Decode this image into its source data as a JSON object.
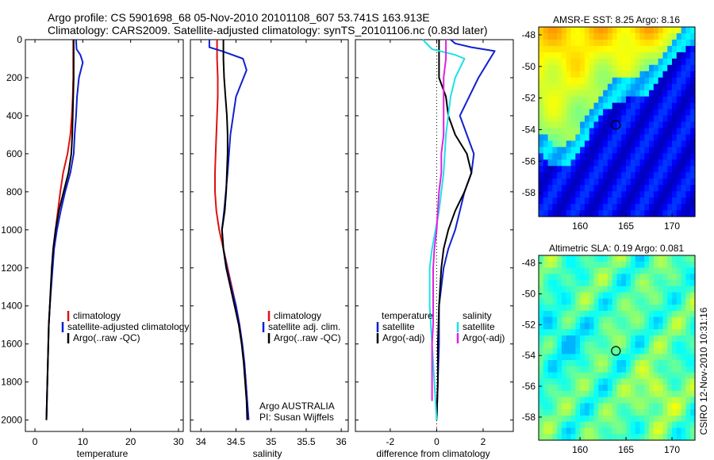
{
  "title": {
    "line1": "Argo profile: CS 5901698_68 05-Nov-2010 20101108_607 53.741S 163.913E",
    "line2": "Climatology: CARS2009. Satellite-adjusted climatology: synTS_20101106.nc (0.83d later)"
  },
  "colors": {
    "climatology": "#e01010",
    "satellite": "#1020d0",
    "argo": "#000000",
    "sal_satellite": "#20e0e8",
    "sal_argo": "#e020e0"
  },
  "chart_data": [
    {
      "type": "line",
      "id": "temperature",
      "xlabel": "temperature",
      "xlim": [
        -2,
        31
      ],
      "xticks": [
        0,
        10,
        20,
        30
      ],
      "ylim": [
        2060,
        0
      ],
      "yticks": [
        0,
        200,
        400,
        600,
        800,
        1000,
        1200,
        1400,
        1600,
        1800,
        2000
      ],
      "legend_position": "bottom-right",
      "series": [
        {
          "name": "climatology",
          "color_key": "climatology",
          "points": [
            [
              8.0,
              0
            ],
            [
              8.0,
              100
            ],
            [
              8.0,
              200
            ],
            [
              7.9,
              300
            ],
            [
              7.7,
              400
            ],
            [
              7.4,
              500
            ],
            [
              6.8,
              600
            ],
            [
              5.9,
              700
            ],
            [
              5.3,
              800
            ],
            [
              4.8,
              900
            ],
            [
              4.3,
              1000
            ],
            [
              3.9,
              1100
            ],
            [
              3.6,
              1200
            ],
            [
              3.3,
              1300
            ],
            [
              3.1,
              1400
            ],
            [
              2.9,
              1500
            ],
            [
              2.8,
              1600
            ],
            [
              2.7,
              1700
            ],
            [
              2.6,
              1800
            ],
            [
              2.5,
              1900
            ],
            [
              2.4,
              2000
            ]
          ]
        },
        {
          "name": "satellite-adjusted climatology",
          "color_key": "satellite",
          "points": [
            [
              8.6,
              0
            ],
            [
              8.7,
              50
            ],
            [
              9.5,
              80
            ],
            [
              10.0,
              120
            ],
            [
              9.2,
              200
            ],
            [
              8.8,
              300
            ],
            [
              8.6,
              400
            ],
            [
              8.3,
              500
            ],
            [
              8.1,
              600
            ],
            [
              7.4,
              700
            ],
            [
              6.3,
              800
            ],
            [
              5.4,
              900
            ],
            [
              4.6,
              1000
            ],
            [
              4.0,
              1100
            ],
            [
              3.7,
              1200
            ],
            [
              3.4,
              1300
            ],
            [
              3.1,
              1400
            ],
            [
              2.9,
              1500
            ],
            [
              2.8,
              1600
            ],
            [
              2.7,
              1700
            ],
            [
              2.6,
              1800
            ],
            [
              2.5,
              1900
            ],
            [
              2.4,
              2000
            ]
          ]
        },
        {
          "name": "Argo(..raw -QC)",
          "color_key": "argo",
          "points": [
            [
              8.1,
              0
            ],
            [
              8.1,
              100
            ],
            [
              8.1,
              200
            ],
            [
              8.0,
              300
            ],
            [
              7.9,
              400
            ],
            [
              7.8,
              500
            ],
            [
              7.6,
              600
            ],
            [
              7.0,
              700
            ],
            [
              6.0,
              800
            ],
            [
              5.0,
              900
            ],
            [
              4.3,
              1000
            ],
            [
              3.8,
              1100
            ],
            [
              3.5,
              1200
            ],
            [
              3.3,
              1300
            ],
            [
              3.1,
              1400
            ],
            [
              2.9,
              1500
            ],
            [
              2.8,
              1600
            ],
            [
              2.7,
              1700
            ],
            [
              2.6,
              1800
            ],
            [
              2.5,
              1900
            ],
            [
              2.4,
              2000
            ]
          ]
        }
      ]
    },
    {
      "type": "line",
      "id": "salinity",
      "xlabel": "salinity",
      "xlim": [
        33.85,
        36.1
      ],
      "xticks": [
        34,
        34.5,
        35,
        35.5,
        36
      ],
      "ylim": [
        2060,
        0
      ],
      "yticks": [
        0,
        200,
        400,
        600,
        800,
        1000,
        1200,
        1400,
        1600,
        1800,
        2000
      ],
      "legend_position": "bottom-right",
      "series": [
        {
          "name": "climatology",
          "color_key": "climatology",
          "points": [
            [
              34.23,
              0
            ],
            [
              34.23,
              100
            ],
            [
              34.24,
              200
            ],
            [
              34.24,
              300
            ],
            [
              34.23,
              400
            ],
            [
              34.22,
              500
            ],
            [
              34.21,
              600
            ],
            [
              34.2,
              700
            ],
            [
              34.2,
              800
            ],
            [
              34.22,
              900
            ],
            [
              34.26,
              1000
            ],
            [
              34.32,
              1100
            ],
            [
              34.38,
              1200
            ],
            [
              34.44,
              1300
            ],
            [
              34.5,
              1400
            ],
            [
              34.55,
              1500
            ],
            [
              34.59,
              1600
            ],
            [
              34.62,
              1700
            ],
            [
              34.64,
              1800
            ],
            [
              34.66,
              1900
            ],
            [
              34.68,
              2000
            ]
          ]
        },
        {
          "name": "satellite adj. clim.",
          "color_key": "satellite",
          "points": [
            [
              34.12,
              0
            ],
            [
              34.12,
              40
            ],
            [
              34.3,
              60
            ],
            [
              34.6,
              100
            ],
            [
              34.65,
              160
            ],
            [
              34.5,
              300
            ],
            [
              34.42,
              500
            ],
            [
              34.38,
              700
            ],
            [
              34.33,
              900
            ],
            [
              34.3,
              1000
            ],
            [
              34.32,
              1100
            ],
            [
              34.37,
              1200
            ],
            [
              34.43,
              1300
            ],
            [
              34.5,
              1400
            ],
            [
              34.55,
              1500
            ],
            [
              34.59,
              1600
            ],
            [
              34.62,
              1700
            ],
            [
              34.64,
              1800
            ],
            [
              34.66,
              1900
            ],
            [
              34.68,
              2000
            ]
          ]
        },
        {
          "name": "Argo(..raw -QC)",
          "color_key": "argo",
          "points": [
            [
              34.32,
              0
            ],
            [
              34.32,
              100
            ],
            [
              34.33,
              200
            ],
            [
              34.35,
              300
            ],
            [
              34.37,
              400
            ],
            [
              34.38,
              500
            ],
            [
              34.38,
              600
            ],
            [
              34.37,
              700
            ],
            [
              34.36,
              800
            ],
            [
              34.34,
              900
            ],
            [
              34.3,
              1000
            ],
            [
              34.32,
              1100
            ],
            [
              34.36,
              1200
            ],
            [
              34.42,
              1300
            ],
            [
              34.48,
              1400
            ],
            [
              34.54,
              1500
            ],
            [
              34.58,
              1600
            ],
            [
              34.61,
              1700
            ],
            [
              34.63,
              1800
            ],
            [
              34.65,
              1900
            ],
            [
              34.66,
              2000
            ]
          ]
        }
      ]
    },
    {
      "type": "line",
      "id": "difference",
      "xlabel": "difference from climatology",
      "xlim": [
        -3.5,
        3.3
      ],
      "xticks": [
        -2,
        0,
        2
      ],
      "ylim": [
        2060,
        0
      ],
      "yticks": [
        0,
        200,
        400,
        600,
        800,
        1000,
        1200,
        1400,
        1600,
        1800,
        2000
      ],
      "legend_position": "bottom",
      "series": [
        {
          "name": "satellite",
          "group": "temperature",
          "color_key": "satellite",
          "points": [
            [
              0.6,
              0
            ],
            [
              0.8,
              20
            ],
            [
              1.5,
              40
            ],
            [
              2.5,
              60
            ],
            [
              2.2,
              120
            ],
            [
              1.8,
              200
            ],
            [
              1.0,
              400
            ],
            [
              1.3,
              500
            ],
            [
              1.6,
              600
            ],
            [
              1.5,
              700
            ],
            [
              1.2,
              800
            ],
            [
              1.0,
              900
            ],
            [
              0.8,
              1000
            ],
            [
              0.5,
              1100
            ],
            [
              0.3,
              1200
            ],
            [
              0.2,
              1300
            ],
            [
              0.1,
              1400
            ],
            [
              0.1,
              1600
            ],
            [
              0.05,
              1800
            ],
            [
              0.0,
              2000
            ]
          ]
        },
        {
          "name": "Argo(-adj)",
          "group": "temperature",
          "color_key": "argo",
          "points": [
            [
              0.1,
              0
            ],
            [
              0.1,
              100
            ],
            [
              0.1,
              200
            ],
            [
              0.4,
              300
            ],
            [
              0.5,
              400
            ],
            [
              0.8,
              500
            ],
            [
              1.3,
              600
            ],
            [
              1.5,
              700
            ],
            [
              1.2,
              800
            ],
            [
              0.8,
              900
            ],
            [
              0.5,
              1000
            ],
            [
              0.3,
              1100
            ],
            [
              0.2,
              1200
            ],
            [
              0.15,
              1300
            ],
            [
              0.1,
              1400
            ],
            [
              0.05,
              1600
            ],
            [
              0.05,
              1800
            ],
            [
              0.0,
              2000
            ]
          ]
        },
        {
          "name": "satellite",
          "group": "salinity",
          "color_key": "sal_satellite",
          "points": [
            [
              -0.6,
              0
            ],
            [
              -0.2,
              50
            ],
            [
              0.8,
              80
            ],
            [
              1.2,
              100
            ],
            [
              0.8,
              200
            ],
            [
              0.6,
              300
            ],
            [
              0.4,
              500
            ],
            [
              0.3,
              700
            ],
            [
              0.1,
              900
            ],
            [
              -0.2,
              1100
            ],
            [
              -0.3,
              1200
            ],
            [
              -0.3,
              1400
            ],
            [
              -0.2,
              1600
            ],
            [
              -0.1,
              1800
            ],
            [
              0.0,
              2000
            ]
          ]
        },
        {
          "name": "Argo(-adj)",
          "group": "salinity",
          "color_key": "sal_argo",
          "points": [
            [
              0.4,
              0
            ],
            [
              0.4,
              100
            ],
            [
              0.3,
              200
            ],
            [
              0.3,
              300
            ],
            [
              0.3,
              400
            ],
            [
              0.3,
              500
            ],
            [
              0.2,
              600
            ],
            [
              0.2,
              700
            ],
            [
              0.1,
              800
            ],
            [
              0.05,
              900
            ],
            [
              0.0,
              1000
            ],
            [
              -0.1,
              1100
            ],
            [
              -0.15,
              1200
            ],
            [
              -0.15,
              1300
            ],
            [
              -0.15,
              1400
            ],
            [
              -0.15,
              1500
            ],
            [
              -0.2,
              1600
            ],
            [
              -0.2,
              1700
            ],
            [
              -0.2,
              1800
            ],
            [
              -0.2,
              1900
            ]
          ]
        }
      ]
    },
    {
      "type": "heatmap",
      "id": "sst_map",
      "title": "AMSR-E SST: 8.25 Argo: 8.16",
      "xlim": [
        155.5,
        172.5
      ],
      "ylim": [
        -59.5,
        -47.5
      ],
      "xticks": [
        160,
        165,
        170
      ],
      "yticks": [
        -48,
        -50,
        -52,
        -54,
        -56,
        -58
      ],
      "marker": [
        163.9,
        -53.7
      ]
    },
    {
      "type": "heatmap",
      "id": "sla_map",
      "title": "Altimetric SLA: 0.19 Argo: 0.081",
      "xlim": [
        155.5,
        172.5
      ],
      "ylim": [
        -59.5,
        -47.5
      ],
      "xticks": [
        160,
        165,
        170
      ],
      "yticks": [
        -48,
        -50,
        -52,
        -54,
        -56,
        -58
      ],
      "marker": [
        163.9,
        -53.7
      ]
    }
  ],
  "legends": {
    "temperature": [
      "climatology",
      "satellite-adjusted climatology",
      "Argo(..raw -QC)"
    ],
    "salinity": [
      "climatology",
      "satellite adj. clim.",
      "Argo(..raw -QC)"
    ],
    "difference": {
      "temp_header": "temperature",
      "sal_header": "salinity",
      "temp_items": [
        "satellite",
        "Argo(-adj)"
      ],
      "sal_items": [
        "satellite",
        "Argo(-adj)"
      ]
    }
  },
  "annotations": {
    "float_org": "Argo AUSTRALIA",
    "pi": "PI: Susan Wijffels"
  },
  "credit": "CSIRO 12-Nov-2010 10:31:16"
}
